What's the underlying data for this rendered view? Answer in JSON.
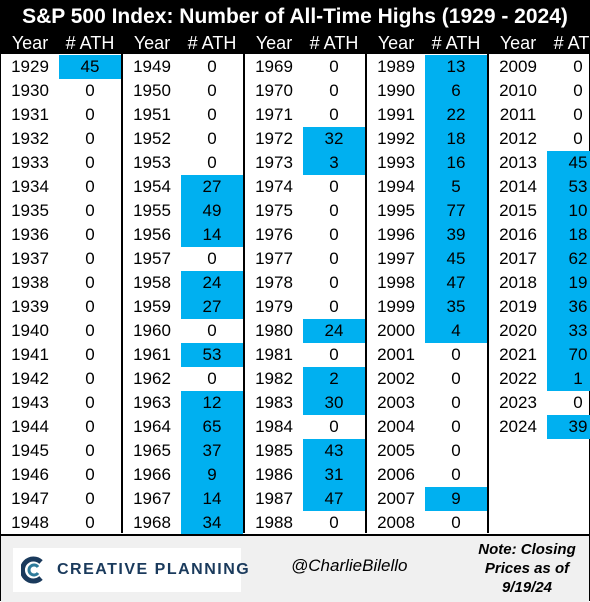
{
  "title": "S&P 500 Index: Number of All-Time Highs (1929 - 2024)",
  "colors": {
    "highlight": "#00b0f0",
    "header_bg": "#000000",
    "footer_bg": "#f0f0f0"
  },
  "table": {
    "header_year": "Year",
    "header_ath": "# ATH"
  },
  "chart_data": {
    "type": "table",
    "title": "S&P 500 Index: Number of All-Time Highs (1929 - 2024)",
    "columns": [
      "Year",
      "# ATH"
    ],
    "rows": [
      [
        "1929",
        "45"
      ],
      [
        "1930",
        "0"
      ],
      [
        "1931",
        "0"
      ],
      [
        "1932",
        "0"
      ],
      [
        "1933",
        "0"
      ],
      [
        "1934",
        "0"
      ],
      [
        "1935",
        "0"
      ],
      [
        "1936",
        "0"
      ],
      [
        "1937",
        "0"
      ],
      [
        "1938",
        "0"
      ],
      [
        "1939",
        "0"
      ],
      [
        "1940",
        "0"
      ],
      [
        "1941",
        "0"
      ],
      [
        "1942",
        "0"
      ],
      [
        "1943",
        "0"
      ],
      [
        "1944",
        "0"
      ],
      [
        "1945",
        "0"
      ],
      [
        "1946",
        "0"
      ],
      [
        "1947",
        "0"
      ],
      [
        "1948",
        "0"
      ],
      [
        "1949",
        "0"
      ],
      [
        "1950",
        "0"
      ],
      [
        "1951",
        "0"
      ],
      [
        "1952",
        "0"
      ],
      [
        "1953",
        "0"
      ],
      [
        "1954",
        "27"
      ],
      [
        "1955",
        "49"
      ],
      [
        "1956",
        "14"
      ],
      [
        "1957",
        "0"
      ],
      [
        "1958",
        "24"
      ],
      [
        "1959",
        "27"
      ],
      [
        "1960",
        "0"
      ],
      [
        "1961",
        "53"
      ],
      [
        "1962",
        "0"
      ],
      [
        "1963",
        "12"
      ],
      [
        "1964",
        "65"
      ],
      [
        "1965",
        "37"
      ],
      [
        "1966",
        "9"
      ],
      [
        "1967",
        "14"
      ],
      [
        "1968",
        "34"
      ],
      [
        "1969",
        "0"
      ],
      [
        "1970",
        "0"
      ],
      [
        "1971",
        "0"
      ],
      [
        "1972",
        "32"
      ],
      [
        "1973",
        "3"
      ],
      [
        "1974",
        "0"
      ],
      [
        "1975",
        "0"
      ],
      [
        "1976",
        "0"
      ],
      [
        "1977",
        "0"
      ],
      [
        "1978",
        "0"
      ],
      [
        "1979",
        "0"
      ],
      [
        "1980",
        "24"
      ],
      [
        "1981",
        "0"
      ],
      [
        "1982",
        "2"
      ],
      [
        "1983",
        "30"
      ],
      [
        "1984",
        "0"
      ],
      [
        "1985",
        "43"
      ],
      [
        "1986",
        "31"
      ],
      [
        "1987",
        "47"
      ],
      [
        "1988",
        "0"
      ],
      [
        "1989",
        "13"
      ],
      [
        "1990",
        "6"
      ],
      [
        "1991",
        "22"
      ],
      [
        "1992",
        "18"
      ],
      [
        "1993",
        "16"
      ],
      [
        "1994",
        "5"
      ],
      [
        "1995",
        "77"
      ],
      [
        "1996",
        "39"
      ],
      [
        "1997",
        "45"
      ],
      [
        "1998",
        "47"
      ],
      [
        "1999",
        "35"
      ],
      [
        "2000",
        "4"
      ],
      [
        "2001",
        "0"
      ],
      [
        "2002",
        "0"
      ],
      [
        "2003",
        "0"
      ],
      [
        "2004",
        "0"
      ],
      [
        "2005",
        "0"
      ],
      [
        "2006",
        "0"
      ],
      [
        "2007",
        "9"
      ],
      [
        "2008",
        "0"
      ],
      [
        "2009",
        "0"
      ],
      [
        "2010",
        "0"
      ],
      [
        "2011",
        "0"
      ],
      [
        "2012",
        "0"
      ],
      [
        "2013",
        "45"
      ],
      [
        "2014",
        "53"
      ],
      [
        "2015",
        "10"
      ],
      [
        "2016",
        "18"
      ],
      [
        "2017",
        "62"
      ],
      [
        "2018",
        "19"
      ],
      [
        "2019",
        "36"
      ],
      [
        "2020",
        "33"
      ],
      [
        "2021",
        "70"
      ],
      [
        "2022",
        "1"
      ],
      [
        "2023",
        "0"
      ],
      [
        "2024",
        "39"
      ]
    ]
  },
  "footer": {
    "logo_text": "CREATIVE PLANNING",
    "handle": "@CharlieBilello",
    "note": "Note: Closing Prices as of 9/19/24"
  }
}
